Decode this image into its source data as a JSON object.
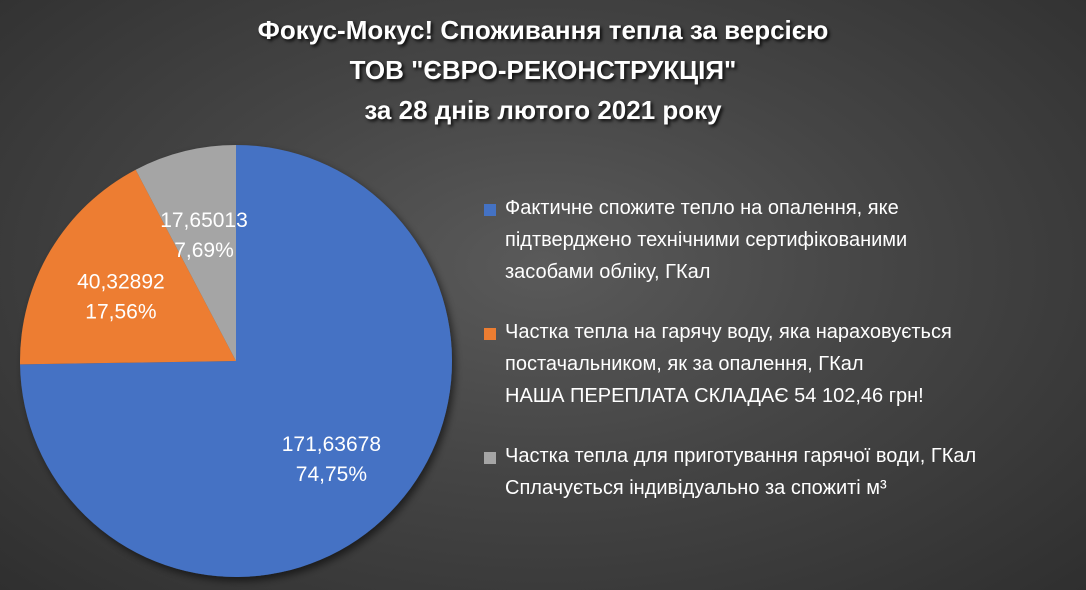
{
  "chart_data": {
    "type": "pie",
    "title": [
      "Фокус-Мокус!  Споживання тепла за версією",
      "ТОВ \"ЄВРО-РЕКОНСТРУКЦІЯ\"",
      "за 28 днів лютого 2021 року"
    ],
    "series": [
      {
        "value": 171.63678,
        "value_label": "171,63678",
        "percent_label": "74,75%",
        "color": "#4472C4",
        "legend": [
          "Фактичне спожите тепло на опалення, яке",
          "підтверджено технічними сертифікованими",
          "засобами обліку, ГКал"
        ]
      },
      {
        "value": 40.32892,
        "value_label": "40,32892",
        "percent_label": "17,56%",
        "color": "#ED7D31",
        "legend": [
          "Частка тепла на гарячу воду, яка нараховується",
          "постачальником, як за опалення, ГКал",
          "НАША ПЕРЕПЛАТА СКЛАДАЄ 54 102,46 грн!"
        ]
      },
      {
        "value": 17.65013,
        "value_label": "17,65013",
        "percent_label": "7,69%",
        "color": "#A5A5A5",
        "legend": [
          "Частка тепла для приготування гарячої води, ГКал",
          "Сплачується індивідуально за спожиті м³"
        ]
      }
    ],
    "legend_position": "right"
  }
}
